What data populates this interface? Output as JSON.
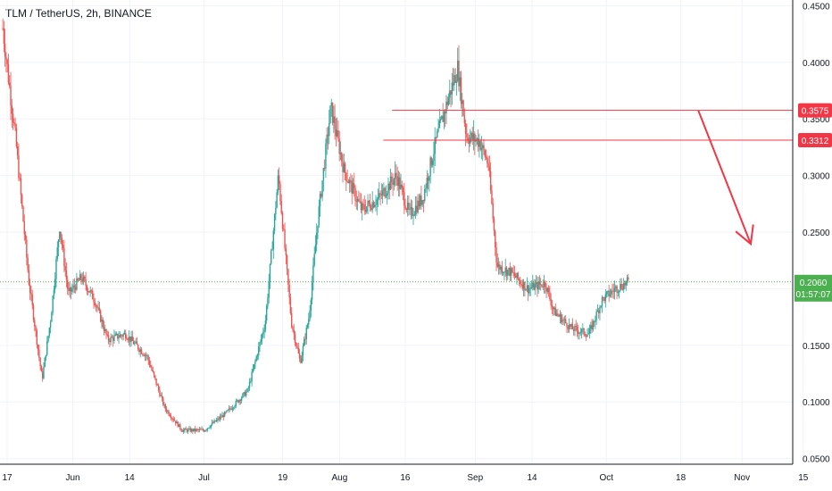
{
  "header": {
    "title": "TLM / TetherUS, 2h, BINANCE"
  },
  "colors": {
    "up": "#26a69a",
    "down": "#ef5350",
    "level": "#f23645",
    "arrow": "#f23645",
    "current": "#4caf50",
    "grid": "#f0f3fa",
    "axis": "#131722"
  },
  "chart_data": {
    "type": "candlestick",
    "ylim": [
      0.045,
      0.455
    ],
    "y_ticks": [
      "0.4500",
      "0.4000",
      "0.3500",
      "0.3000",
      "0.2500",
      "0.2000",
      "0.1500",
      "0.1000",
      "0.0500"
    ],
    "x_ticks": [
      "17",
      "Jun",
      "14",
      "Jul",
      "19",
      "Aug",
      "16",
      "Sep",
      "14",
      "Oct",
      "18",
      "Nov",
      "15"
    ],
    "levels": [
      {
        "label": "0.3575",
        "value": 0.3575
      },
      {
        "label": "0.3312",
        "value": 0.3312
      }
    ],
    "current": {
      "price": "0.2060",
      "countdown": "01:57:07",
      "value": 0.206
    },
    "annotations": [
      {
        "type": "arrow",
        "from": [
          "Oct 22",
          0.3575
        ],
        "to": [
          "Nov 3",
          0.2395
        ]
      }
    ],
    "path": [
      [
        "May 16",
        0.43
      ],
      [
        "May 19",
        0.33
      ],
      [
        "May 22",
        0.205
      ],
      [
        "May 25",
        0.12
      ],
      [
        "May 27",
        0.175
      ],
      [
        "May 29",
        0.255
      ],
      [
        "May 31",
        0.195
      ],
      [
        "Jun 3",
        0.21
      ],
      [
        "Jun 6",
        0.19
      ],
      [
        "Jun 9",
        0.155
      ],
      [
        "Jun 13",
        0.16
      ],
      [
        "Jun 18",
        0.14
      ],
      [
        "Jun 22",
        0.095
      ],
      [
        "Jun 26",
        0.075
      ],
      [
        "Jul 1",
        0.075
      ],
      [
        "Jul 6",
        0.09
      ],
      [
        "Jul 11",
        0.11
      ],
      [
        "Jul 15",
        0.17
      ],
      [
        "Jul 18",
        0.3
      ],
      [
        "Jul 21",
        0.17
      ],
      [
        "Jul 23",
        0.135
      ],
      [
        "Jul 25",
        0.175
      ],
      [
        "Jul 27",
        0.26
      ],
      [
        "Jul 30",
        0.36
      ],
      [
        "Aug 2",
        0.305
      ],
      [
        "Aug 6",
        0.27
      ],
      [
        "Aug 10",
        0.28
      ],
      [
        "Aug 14",
        0.3
      ],
      [
        "Aug 17",
        0.265
      ],
      [
        "Aug 20",
        0.28
      ],
      [
        "Aug 23",
        0.33
      ],
      [
        "Aug 26",
        0.37
      ],
      [
        "Aug 28",
        0.395
      ],
      [
        "Aug 30",
        0.335
      ],
      [
        "Sep 2",
        0.33
      ],
      [
        "Sep 4",
        0.31
      ],
      [
        "Sep 6",
        0.22
      ],
      [
        "Sep 9",
        0.215
      ],
      [
        "Sep 13",
        0.2
      ],
      [
        "Sep 17",
        0.205
      ],
      [
        "Sep 19",
        0.18
      ],
      [
        "Sep 23",
        0.165
      ],
      [
        "Sep 27",
        0.16
      ],
      [
        "Sep 30",
        0.19
      ],
      [
        "Oct 3",
        0.2
      ],
      [
        "Oct 6",
        0.206
      ]
    ]
  }
}
